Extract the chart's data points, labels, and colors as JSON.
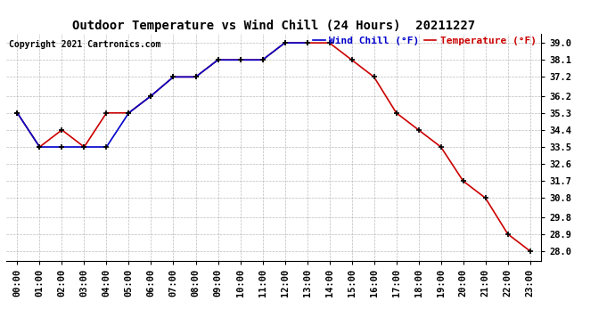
{
  "title": "Outdoor Temperature vs Wind Chill (24 Hours)  20211227",
  "copyright": "Copyright 2021 Cartronics.com",
  "legend_wind_chill": "Wind Chill (°F)",
  "legend_temperature": "Temperature (°F)",
  "hours": [
    "00:00",
    "01:00",
    "02:00",
    "03:00",
    "04:00",
    "05:00",
    "06:00",
    "07:00",
    "08:00",
    "09:00",
    "10:00",
    "11:00",
    "12:00",
    "13:00",
    "14:00",
    "15:00",
    "16:00",
    "17:00",
    "18:00",
    "19:00",
    "20:00",
    "21:00",
    "22:00",
    "23:00"
  ],
  "temperature": [
    35.3,
    33.5,
    34.4,
    33.5,
    35.3,
    35.3,
    36.2,
    37.2,
    37.2,
    38.1,
    38.1,
    38.1,
    39.0,
    39.0,
    39.0,
    38.1,
    37.2,
    35.3,
    34.4,
    33.5,
    31.7,
    30.8,
    28.9,
    28.0
  ],
  "wind_chill": [
    35.3,
    33.5,
    33.5,
    33.5,
    33.5,
    35.3,
    36.2,
    37.2,
    37.2,
    38.1,
    38.1,
    38.1,
    39.0,
    39.0,
    null,
    null,
    null,
    null,
    null,
    null,
    null,
    null,
    null,
    null
  ],
  "ylim_min": 27.5,
  "ylim_max": 39.5,
  "yticks": [
    28.0,
    28.9,
    29.8,
    30.8,
    31.7,
    32.6,
    33.5,
    34.4,
    35.3,
    36.2,
    37.2,
    38.1,
    39.0
  ],
  "temp_color": "#cc0000",
  "wind_chill_color": "#0000cc",
  "background_color": "#ffffff",
  "grid_color": "#aaaaaa",
  "title_color": "#000000",
  "copyright_color": "#000000",
  "legend_wind_color": "#0000cc",
  "legend_temp_color": "#cc0000",
  "marker_color": "#000000",
  "title_fontsize": 10,
  "tick_fontsize": 7.5,
  "copyright_fontsize": 7,
  "legend_fontsize": 8
}
